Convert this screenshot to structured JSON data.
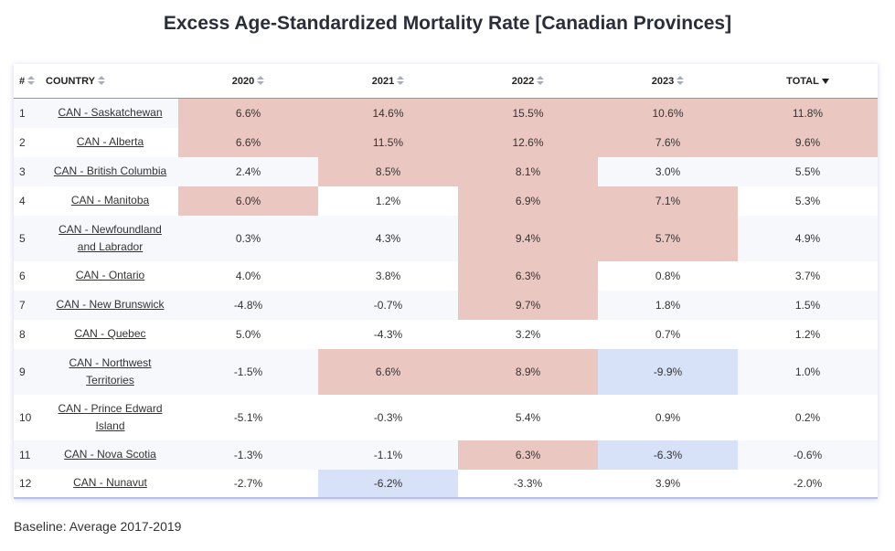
{
  "title": "Excess Age-Standardized Mortality Rate [Canadian Provinces]",
  "headers": {
    "rank": "#",
    "country": "COUNTRY",
    "y2020": "2020",
    "y2021": "2021",
    "y2022": "2022",
    "y2023": "2023",
    "total": "TOTAL"
  },
  "colors": {
    "high": "#ebc7c2",
    "low": "#d7e1f8",
    "stripe": "#f7f8fc"
  },
  "rows": [
    {
      "rank": "1",
      "country": "CAN - Saskatchewan",
      "y2020": "6.6%",
      "y2021": "14.6%",
      "y2022": "15.5%",
      "y2023": "10.6%",
      "total": "11.8%"
    },
    {
      "rank": "2",
      "country": "CAN - Alberta",
      "y2020": "6.6%",
      "y2021": "11.5%",
      "y2022": "12.6%",
      "y2023": "7.6%",
      "total": "9.6%"
    },
    {
      "rank": "3",
      "country": "CAN - British Columbia",
      "y2020": "2.4%",
      "y2021": "8.5%",
      "y2022": "8.1%",
      "y2023": "3.0%",
      "total": "5.5%"
    },
    {
      "rank": "4",
      "country": "CAN - Manitoba",
      "y2020": "6.0%",
      "y2021": "1.2%",
      "y2022": "6.9%",
      "y2023": "7.1%",
      "total": "5.3%"
    },
    {
      "rank": "5",
      "country": "CAN - Newfoundland and Labrador",
      "y2020": "0.3%",
      "y2021": "4.3%",
      "y2022": "9.4%",
      "y2023": "5.7%",
      "total": "4.9%"
    },
    {
      "rank": "6",
      "country": "CAN - Ontario",
      "y2020": "4.0%",
      "y2021": "3.8%",
      "y2022": "6.3%",
      "y2023": "0.8%",
      "total": "3.7%"
    },
    {
      "rank": "7",
      "country": "CAN - New Brunswick",
      "y2020": "-4.8%",
      "y2021": "-0.7%",
      "y2022": "9.7%",
      "y2023": "1.8%",
      "total": "1.5%"
    },
    {
      "rank": "8",
      "country": "CAN - Quebec",
      "y2020": "5.0%",
      "y2021": "-4.3%",
      "y2022": "3.2%",
      "y2023": "0.7%",
      "total": "1.2%"
    },
    {
      "rank": "9",
      "country": "CAN - Northwest Territories",
      "y2020": "-1.5%",
      "y2021": "6.6%",
      "y2022": "8.9%",
      "y2023": "-9.9%",
      "total": "1.0%"
    },
    {
      "rank": "10",
      "country": "CAN - Prince Edward Island",
      "y2020": "-5.1%",
      "y2021": "-0.3%",
      "y2022": "5.4%",
      "y2023": "0.9%",
      "total": "0.2%"
    },
    {
      "rank": "11",
      "country": "CAN - Nova Scotia",
      "y2020": "-1.3%",
      "y2021": "-1.1%",
      "y2022": "6.3%",
      "y2023": "-6.3%",
      "total": "-0.6%"
    },
    {
      "rank": "12",
      "country": "CAN - Nunavut",
      "y2020": "-2.7%",
      "y2021": "-6.2%",
      "y2022": "-3.3%",
      "y2023": "3.9%",
      "total": "-2.0%"
    }
  ],
  "baseline": "Baseline: Average 2017-2019"
}
